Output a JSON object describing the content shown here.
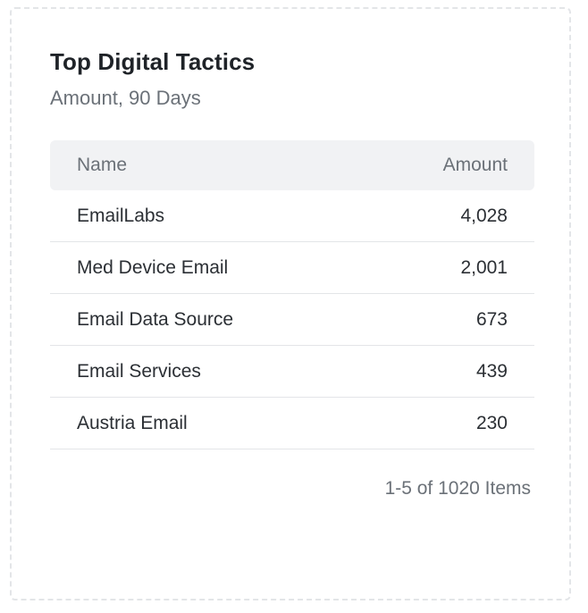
{
  "widget": {
    "title": "Top Digital Tactics",
    "subtitle": "Amount, 90 Days"
  },
  "table": {
    "columns": {
      "name": "Name",
      "amount": "Amount"
    },
    "rows": [
      {
        "name": "EmailLabs",
        "amount": "4,028"
      },
      {
        "name": "Med Device Email",
        "amount": "2,001"
      },
      {
        "name": "Email Data Source",
        "amount": "673"
      },
      {
        "name": "Email Services",
        "amount": "439"
      },
      {
        "name": "Austria Email",
        "amount": "230"
      }
    ]
  },
  "pagination": {
    "summary": "1-5 of 1020 Items"
  }
}
